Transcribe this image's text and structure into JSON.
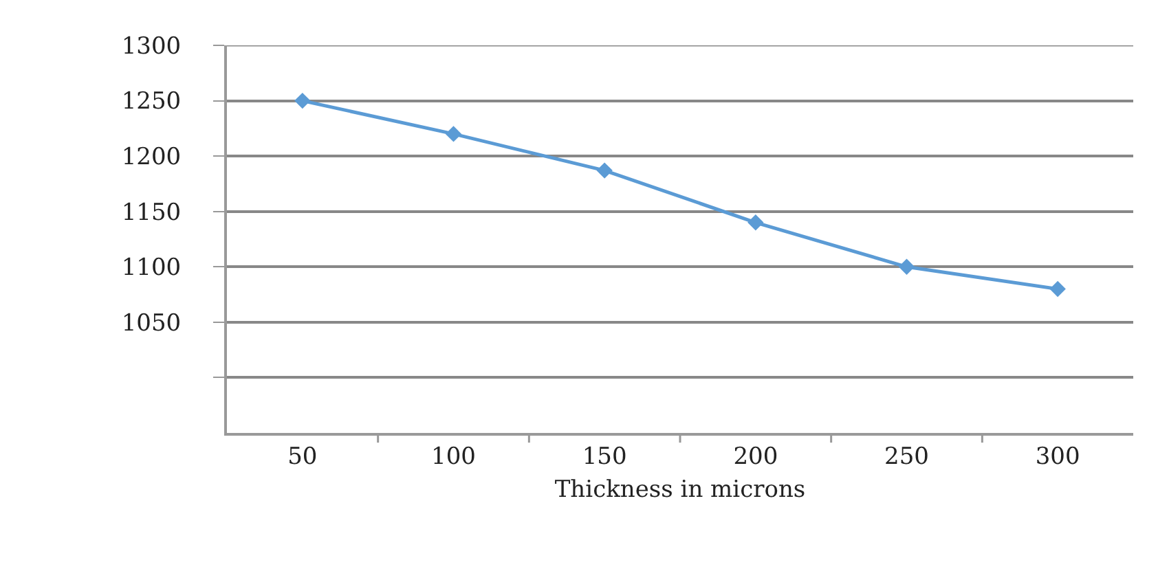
{
  "chart_data": {
    "type": "line",
    "xlabel": "Thickness in microns",
    "categories": [
      "50",
      "100",
      "150",
      "200",
      "250",
      "300"
    ],
    "series": [
      {
        "color": "#5b9bd5",
        "values": [
          1250,
          1220,
          1187,
          1140,
          1100,
          1080
        ]
      }
    ],
    "ylim": [
      950,
      1300
    ],
    "yticks": [
      1050,
      1100,
      1150,
      1200,
      1250,
      1300,
      {
        "value": 1000,
        "label": null
      }
    ],
    "grid": "y",
    "marker": "diamond",
    "line_style": "solid"
  }
}
